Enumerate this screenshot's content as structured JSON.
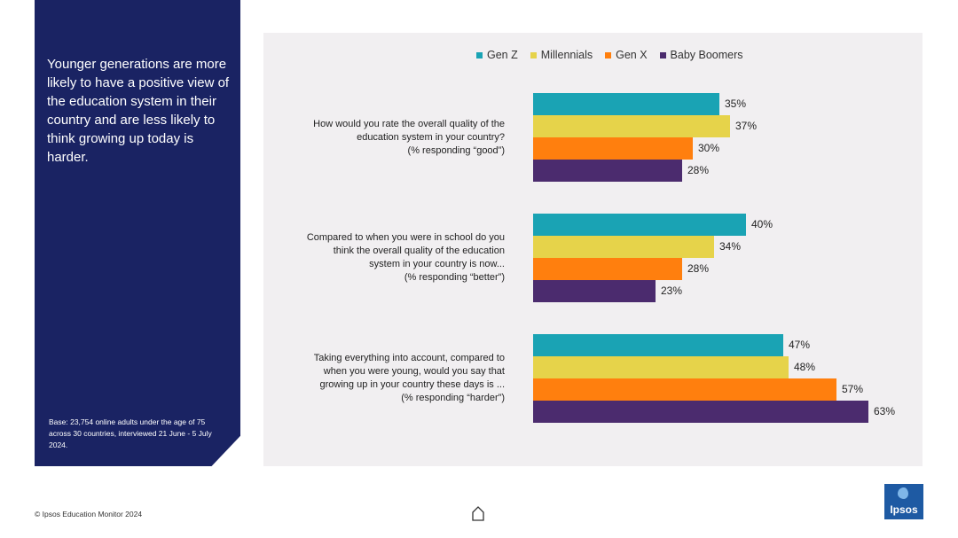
{
  "sidebar": {
    "headline": "Younger generations are more likely to have a positive view of the education system in their country and are less likely to think growing up today is harder.",
    "base_note": "Base: 23,754 online adults under the age of 75 across 30 countries, interviewed 21 June - 5 July 2024."
  },
  "footer": {
    "copyright": "© Ipsos Education Monitor 2024",
    "logo_text": "Ipsos"
  },
  "colors": {
    "Gen Z": "#1aa3b4",
    "Millennials": "#e6d34a",
    "Gen X": "#ff7f0e",
    "Baby Boomers": "#4b2b6e"
  },
  "chart_data": {
    "type": "bar",
    "orientation": "horizontal",
    "title": "",
    "legend_position": "top",
    "series_names": [
      "Gen Z",
      "Millennials",
      "Gen X",
      "Baby Boomers"
    ],
    "categories": [
      {
        "lines": [
          "How would you rate the overall quality of the",
          "education system in your country?",
          "(% responding “good”)"
        ],
        "values": [
          35,
          37,
          30,
          28
        ],
        "labels": [
          "35%",
          "37%",
          "30%",
          "28%"
        ]
      },
      {
        "lines": [
          "Compared to when you were in school do you",
          "think the overall quality of the education",
          "system in your country is now...",
          "(% responding “better”)"
        ],
        "values": [
          40,
          34,
          28,
          23
        ],
        "labels": [
          "40%",
          "34%",
          "28%",
          "23%"
        ]
      },
      {
        "lines": [
          "Taking everything into account, compared to",
          "when you were young, would you say that",
          "growing up in your country these days is ...",
          "(% responding “harder”)"
        ],
        "values": [
          47,
          48,
          57,
          63
        ],
        "labels": [
          "47%",
          "48%",
          "57%",
          "63%"
        ]
      }
    ],
    "xlim": [
      0,
      70
    ]
  }
}
